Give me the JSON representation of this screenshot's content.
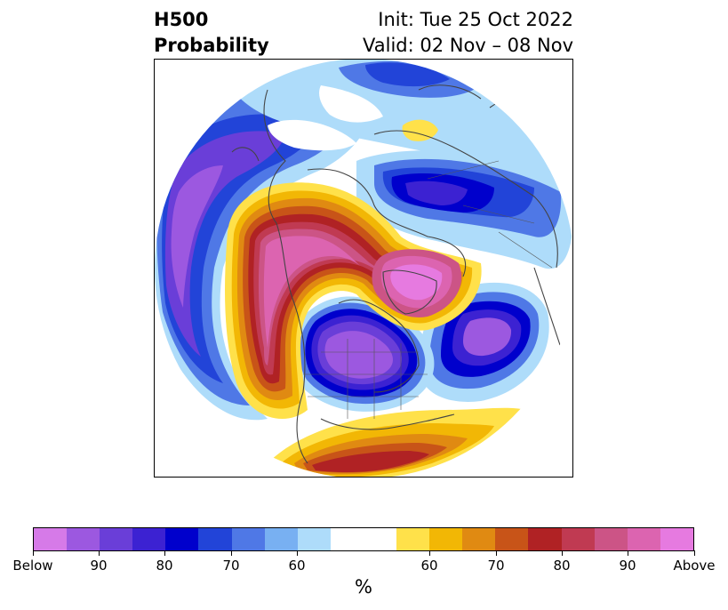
{
  "title": {
    "line1": "H500",
    "line2": "Probability",
    "init": "Init: Tue 25 Oct 2022",
    "valid": "Valid: 02 Nov – 08 Nov"
  },
  "colorbar": {
    "colors": [
      "#d67ae8",
      "#9c58e0",
      "#6a3ed8",
      "#3c22d2",
      "#0000cc",
      "#2244d8",
      "#4f78e6",
      "#78b0f2",
      "#aedcfa",
      "#ffffff",
      "#ffffff",
      "#ffe14a",
      "#f2b705",
      "#e08a12",
      "#c85418",
      "#b02224",
      "#c03a52",
      "#cc5486",
      "#dc64b0",
      "#e67ae0"
    ],
    "tick_labels": [
      "Below",
      "90",
      "80",
      "70",
      "60",
      "60",
      "70",
      "80",
      "90",
      "Above"
    ],
    "unit": "%"
  },
  "map": {
    "projection": "north-polar-stereographic",
    "variable": "500 hPa height anomaly probability",
    "features": [
      {
        "name": "north-pacific-below-center",
        "category": "Below",
        "color": "#6a3ed8"
      },
      {
        "name": "western-north-america-above-center",
        "category": "Above",
        "color": "#dc64b0"
      },
      {
        "name": "canada-hudson-bay-below-center",
        "category": "Below",
        "color": "#9c58e0"
      },
      {
        "name": "greenland-above-center",
        "category": "Above",
        "color": "#e67ae0"
      },
      {
        "name": "north-atlantic-below-center",
        "category": "Below",
        "color": "#9c58e0"
      },
      {
        "name": "eurasia-below-center",
        "category": "Below",
        "color": "#3c22d2"
      },
      {
        "name": "southeast-us-above-band",
        "category": "Above",
        "color": "#b02224"
      }
    ]
  }
}
